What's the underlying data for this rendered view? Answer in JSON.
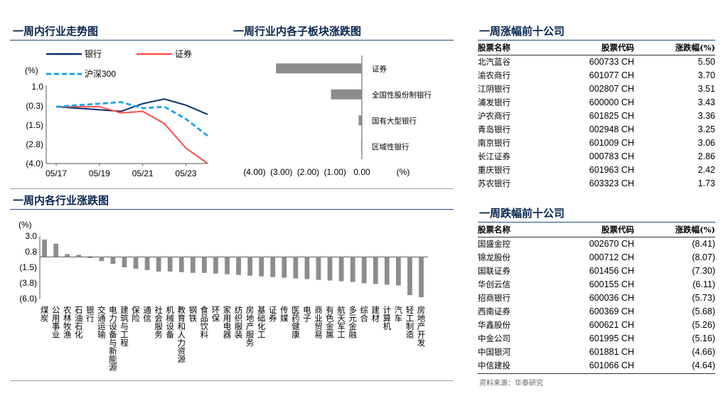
{
  "titles": {
    "trend": "一周内行业走势图",
    "sub": "一周行业内各子板块涨跌图",
    "industry": "一周内各行业涨跌图",
    "top": "一周涨幅前十公司",
    "bottom": "一周跌幅前十公司"
  },
  "source": "资料来源：华泰研究",
  "chart_data": [
    {
      "type": "line",
      "ylabel": "(%)",
      "y_ticks": [
        "1.0",
        "(0.3)",
        "(1.5)",
        "(2.8)",
        "(4.0)"
      ],
      "ylim": [
        -4.0,
        1.0
      ],
      "x_tick_labels": [
        "05/17",
        "05/19",
        "05/21",
        "05/23"
      ],
      "x": [
        0,
        1,
        2,
        3,
        4,
        5,
        6,
        7
      ],
      "series": [
        {
          "name": "银行",
          "color": "#0b2f6b",
          "style": "solid",
          "values": [
            -0.3,
            -0.4,
            -0.5,
            -0.6,
            -0.1,
            0.2,
            -0.2,
            -0.8
          ]
        },
        {
          "name": "证券",
          "color": "#ff4d4d",
          "style": "solid",
          "values": [
            -0.3,
            -0.3,
            -0.3,
            -0.7,
            -0.6,
            -1.4,
            -3.0,
            -4.0
          ]
        },
        {
          "name": "沪深300",
          "color": "#1aa3e8",
          "style": "dashed",
          "values": [
            -0.3,
            -0.2,
            -0.1,
            0.0,
            -0.4,
            -0.3,
            -1.1,
            -2.2
          ]
        }
      ]
    },
    {
      "type": "bar",
      "orientation": "horizontal",
      "categories": [
        "证券",
        "全国性股份制银行",
        "国有大型银行",
        "区域性银行"
      ],
      "values": [
        -3.2,
        -1.15,
        -0.12,
        -0.03
      ],
      "x_ticks": [
        "(4.00)",
        "(3.00)",
        "(2.00)",
        "(1.00)",
        "0.00"
      ],
      "xlim": [
        -4.0,
        0.0
      ],
      "xlabel": "(%)",
      "color": "#8c8c8c"
    },
    {
      "type": "bar",
      "ylabel": "(%)",
      "y_ticks": [
        "3.0",
        "0.8",
        "(1.5)",
        "(3.8)",
        "(6.0)"
      ],
      "ylim": [
        -6.0,
        3.0
      ],
      "highlight": "银行",
      "highlight_color": "#0b2f6b",
      "color": "#8c8c8c",
      "categories": [
        "煤炭",
        "公用事业",
        "农林牧渔",
        "石油石化",
        "银行",
        "交通运输",
        "电力设备与新能源",
        "建筑与工程",
        "保险",
        "通信",
        "社会服务",
        "机械设备",
        "教育和人力资源",
        "钢铁",
        "食品饮料",
        "环保",
        "家用电器",
        "纺织服装",
        "房地产服务",
        "基础化工",
        "证券",
        "传媒",
        "医药健康",
        "电子",
        "商业贸易",
        "有色金属",
        "航天军工",
        "多元金融",
        "综合",
        "建材",
        "计算机",
        "汽车",
        "轻工制造",
        "房地产开发"
      ],
      "values": [
        2.5,
        1.9,
        0.4,
        0.3,
        -0.1,
        -0.6,
        -1.0,
        -1.5,
        -1.7,
        -1.9,
        -2.1,
        -2.1,
        -2.2,
        -2.3,
        -2.3,
        -2.4,
        -2.5,
        -2.6,
        -2.7,
        -2.8,
        -2.9,
        -3.0,
        -3.1,
        -3.2,
        -3.3,
        -3.4,
        -3.5,
        -3.6,
        -3.8,
        -3.9,
        -4.0,
        -4.1,
        -5.5,
        -5.8
      ]
    }
  ],
  "top_table": {
    "headers": [
      "股票名称",
      "股票代码",
      "涨跌幅(%)"
    ],
    "rows": [
      [
        "北汽蓝谷",
        "600733 CH",
        "5.50"
      ],
      [
        "渝农商行",
        "601077 CH",
        "3.70"
      ],
      [
        "江阴银行",
        "002807 CH",
        "3.51"
      ],
      [
        "浦发银行",
        "600000 CH",
        "3.43"
      ],
      [
        "沪农商行",
        "601825 CH",
        "3.36"
      ],
      [
        "青岛银行",
        "002948 CH",
        "3.25"
      ],
      [
        "南京银行",
        "601009 CH",
        "3.06"
      ],
      [
        "长江证券",
        "000783 CH",
        "2.86"
      ],
      [
        "重庆银行",
        "601963 CH",
        "2.42"
      ],
      [
        "苏农银行",
        "603323 CH",
        "1.73"
      ]
    ]
  },
  "bottom_table": {
    "headers": [
      "股票名称",
      "股票代码",
      "涨跌幅(%)"
    ],
    "rows": [
      [
        "国盛金控",
        "002670 CH",
        "(8.41)"
      ],
      [
        "锦龙股份",
        "000712 CH",
        "(8.07)"
      ],
      [
        "国联证券",
        "601456 CH",
        "(7.30)"
      ],
      [
        "华创云信",
        "600155 CH",
        "(6.11)"
      ],
      [
        "招商银行",
        "600036 CH",
        "(5.73)"
      ],
      [
        "西南证券",
        "600369 CH",
        "(5.68)"
      ],
      [
        "华鑫股份",
        "600621 CH",
        "(5.26)"
      ],
      [
        "中金公司",
        "601995 CH",
        "(5.16)"
      ],
      [
        "中国银河",
        "601881 CH",
        "(4.66)"
      ],
      [
        "中信建投",
        "601066 CH",
        "(4.64)"
      ]
    ]
  }
}
